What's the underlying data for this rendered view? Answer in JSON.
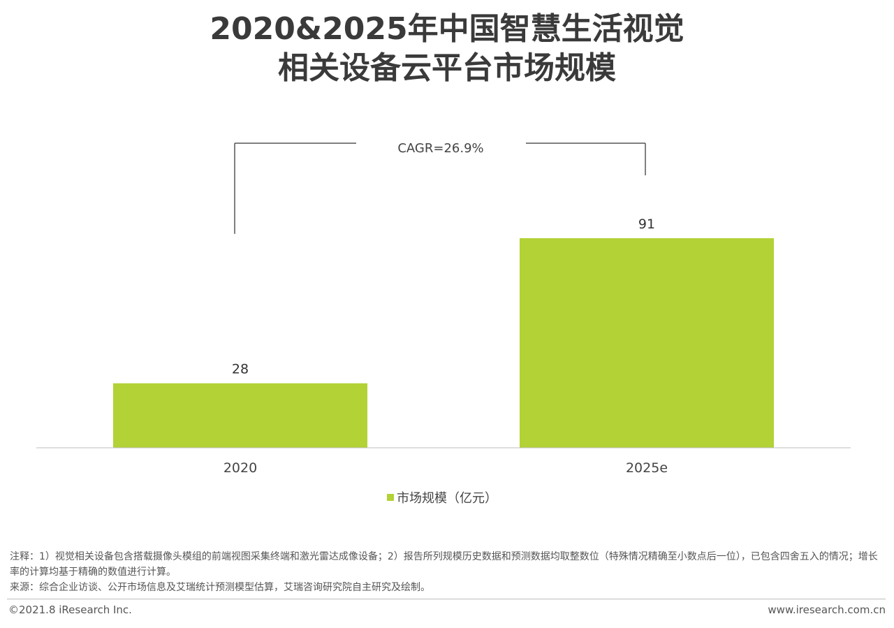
{
  "title": {
    "line1": "2020&2025年中国智慧生活视觉",
    "line2": "相关设备云平台市场规模"
  },
  "chart_data": {
    "type": "bar",
    "categories": [
      "2020",
      "2025e"
    ],
    "series": [
      {
        "name": "市场规模（亿元）",
        "values": [
          28,
          91
        ],
        "color": "#b2d235"
      }
    ],
    "ylim": [
      0,
      100
    ],
    "grid": false,
    "legend_position": "bottom-center",
    "annotation": "CAGR=26.9%",
    "axis_color": "#bfbfbf"
  },
  "notes": {
    "note": "注释：1）视觉相关设备包含搭载摄像头模组的前端视图采集终端和激光雷达成像设备；2）报告所列规模历史数据和预测数据均取整数位（特殊情况精确至小数点后一位），已包含四舍五入的情况；增长率的计算均基于精确的数值进行计算。",
    "source": "来源：综合企业访谈、公开市场信息及艾瑞统计预测模型估算，艾瑞咨询研究院自主研究及绘制。"
  },
  "footer": {
    "copyright": "©2021.8 iResearch Inc.",
    "website": "www.iresearch.com.cn"
  }
}
